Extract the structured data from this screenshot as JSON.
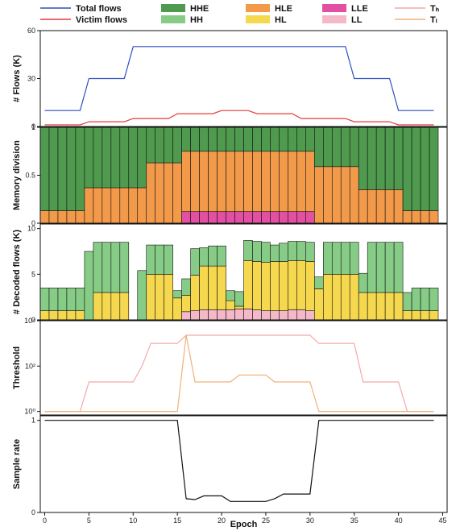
{
  "legend": [
    {
      "label": "Total flows",
      "kind": "line",
      "color": "#2f4fbf"
    },
    {
      "label": "Victim flows",
      "kind": "line",
      "color": "#e83a3a"
    },
    {
      "label": "HHE",
      "kind": "box",
      "color": "#4f9a4f"
    },
    {
      "label": "HH",
      "kind": "box",
      "color": "#86cc86"
    },
    {
      "label": "HLE",
      "kind": "box",
      "color": "#f39a4a"
    },
    {
      "label": "HL",
      "kind": "box",
      "color": "#f6d84e"
    },
    {
      "label": "LLE",
      "kind": "box",
      "color": "#e34fa2"
    },
    {
      "label": "LL",
      "kind": "box",
      "color": "#f5b8c9"
    },
    {
      "label": "Tₕ",
      "kind": "line",
      "color": "#f4a9a9"
    },
    {
      "label": "Tₗ",
      "kind": "line",
      "color": "#f0b27a"
    }
  ],
  "xlabel": "Epoch",
  "chart_data": [
    {
      "type": "line",
      "ylabel": "# Flows (K)",
      "ylim": [
        0,
        60
      ],
      "yticks": [
        "0",
        "30",
        "60"
      ],
      "x": [
        0,
        1,
        2,
        3,
        4,
        5,
        6,
        7,
        8,
        9,
        10,
        11,
        12,
        13,
        14,
        15,
        16,
        17,
        18,
        19,
        20,
        21,
        22,
        23,
        24,
        25,
        26,
        27,
        28,
        29,
        30,
        31,
        32,
        33,
        34,
        35,
        36,
        37,
        38,
        39,
        40,
        41,
        42,
        43,
        44
      ],
      "series": [
        {
          "name": "Total flows",
          "color": "#2f4fbf",
          "values": [
            10,
            10,
            10,
            10,
            10,
            30,
            30,
            30,
            30,
            30,
            50,
            50,
            50,
            50,
            50,
            50,
            50,
            50,
            50,
            50,
            50,
            50,
            50,
            50,
            50,
            50,
            50,
            50,
            50,
            50,
            50,
            50,
            50,
            50,
            50,
            30,
            30,
            30,
            30,
            30,
            10,
            10,
            10,
            10,
            10
          ]
        },
        {
          "name": "Victim flows",
          "color": "#e83a3a",
          "values": [
            1,
            1,
            1,
            1,
            1,
            3,
            3,
            3,
            3,
            3,
            5,
            5,
            5,
            5,
            5,
            8,
            8,
            8,
            8,
            8,
            10,
            10,
            10,
            10,
            8,
            8,
            8,
            8,
            8,
            5,
            5,
            5,
            5,
            5,
            5,
            3,
            3,
            3,
            3,
            3,
            1,
            1,
            1,
            1,
            1
          ]
        }
      ]
    },
    {
      "type": "bar",
      "stacked": true,
      "ylabel": "Memory division",
      "ylim": [
        0,
        1
      ],
      "yticks": [
        "0",
        "0.5",
        "1"
      ],
      "segments": [
        "LLE",
        "HLE",
        "HHE"
      ],
      "values": {
        "LLE": [
          0,
          0,
          0,
          0,
          0,
          0,
          0,
          0,
          0,
          0,
          0,
          0,
          0,
          0,
          0,
          0,
          0.12,
          0.12,
          0.12,
          0.12,
          0.12,
          0.12,
          0.12,
          0.12,
          0.12,
          0.12,
          0.12,
          0.12,
          0.12,
          0.12,
          0.12,
          0,
          0,
          0,
          0,
          0,
          0,
          0,
          0,
          0,
          0,
          0,
          0,
          0,
          0
        ],
        "HLE": [
          0.13,
          0.13,
          0.13,
          0.13,
          0.13,
          0.37,
          0.37,
          0.37,
          0.37,
          0.37,
          0.37,
          0.37,
          0.63,
          0.63,
          0.63,
          0.63,
          0.63,
          0.63,
          0.63,
          0.63,
          0.63,
          0.63,
          0.63,
          0.63,
          0.63,
          0.63,
          0.63,
          0.63,
          0.63,
          0.63,
          0.63,
          0.59,
          0.59,
          0.59,
          0.59,
          0.59,
          0.35,
          0.35,
          0.35,
          0.35,
          0.35,
          0.13,
          0.13,
          0.13,
          0.13
        ],
        "HHE": [
          0.87,
          0.87,
          0.87,
          0.87,
          0.87,
          0.63,
          0.63,
          0.63,
          0.63,
          0.63,
          0.63,
          0.63,
          0.37,
          0.37,
          0.37,
          0.37,
          0.25,
          0.25,
          0.25,
          0.25,
          0.25,
          0.25,
          0.25,
          0.25,
          0.25,
          0.25,
          0.25,
          0.25,
          0.25,
          0.25,
          0.25,
          0.41,
          0.41,
          0.41,
          0.41,
          0.41,
          0.65,
          0.65,
          0.65,
          0.65,
          0.65,
          0.87,
          0.87,
          0.87,
          0.87
        ]
      }
    },
    {
      "type": "bar",
      "stacked": true,
      "ylabel": "# Decoded flows (K)",
      "ylim": [
        0,
        10.5
      ],
      "yticks": [
        "0",
        "5",
        "10"
      ],
      "segments": [
        "LL",
        "HL",
        "HH"
      ],
      "values": {
        "LL": [
          0,
          0,
          0,
          0,
          0,
          0,
          0,
          0,
          0,
          0,
          0,
          0,
          0,
          0,
          0,
          0,
          0.9,
          1.0,
          1.1,
          1.1,
          1.1,
          1.1,
          1.2,
          1.2,
          1.1,
          1.0,
          1.0,
          1.0,
          1.1,
          1.1,
          1.0,
          0,
          0,
          0,
          0,
          0,
          0,
          0,
          0,
          0,
          0,
          0,
          0,
          0,
          0
        ],
        "HL": [
          1.0,
          1.0,
          1.0,
          1.0,
          1.0,
          0,
          3.0,
          3.0,
          3.0,
          3.0,
          0,
          0,
          5.0,
          5.0,
          5.0,
          2.4,
          1.8,
          3.9,
          4.8,
          4.8,
          4.8,
          1.0,
          0.3,
          5.3,
          5.3,
          5.3,
          5.4,
          5.4,
          5.4,
          5.4,
          5.4,
          3.4,
          5.0,
          5.0,
          5.0,
          5.0,
          3.0,
          3.0,
          3.0,
          3.0,
          3.0,
          1.0,
          1.0,
          1.0,
          1.0
        ],
        "HH": [
          2.5,
          2.5,
          2.5,
          2.5,
          2.5,
          7.5,
          5.5,
          5.5,
          5.5,
          5.5,
          0,
          5.4,
          3.2,
          3.2,
          3.2,
          0.8,
          1.8,
          2.9,
          2.0,
          2.2,
          2.2,
          1.1,
          1.6,
          2.2,
          2.2,
          2.2,
          1.8,
          2.0,
          2.1,
          2.1,
          2.1,
          1.3,
          3.5,
          3.5,
          3.5,
          3.5,
          2.1,
          5.5,
          5.5,
          5.5,
          5.5,
          2.0,
          2.5,
          2.5,
          2.5
        ]
      }
    },
    {
      "type": "line",
      "ylabel": "Threshold",
      "yscale": "log",
      "ylim": [
        0.7,
        10000
      ],
      "yticks": [
        "10⁰",
        "10²",
        "10⁴"
      ],
      "series": [
        {
          "name": "Tₕ",
          "color": "#f4a9a9",
          "values": [
            1,
            1,
            1,
            1,
            1,
            20,
            20,
            20,
            20,
            20,
            20,
            100,
            1000,
            1000,
            1000,
            1000,
            2300,
            2300,
            2300,
            2300,
            2300,
            2300,
            2300,
            2300,
            2300,
            2300,
            2300,
            2300,
            2300,
            2300,
            2300,
            1000,
            1000,
            1000,
            1000,
            1000,
            20,
            20,
            20,
            20,
            20,
            1,
            1,
            1,
            1
          ]
        },
        {
          "name": "Tₗ",
          "color": "#f0b27a",
          "values": [
            1,
            1,
            1,
            1,
            1,
            1,
            1,
            1,
            1,
            1,
            1,
            1,
            1,
            1,
            1,
            1,
            2300,
            20,
            20,
            20,
            20,
            20,
            40,
            40,
            40,
            40,
            20,
            20,
            20,
            20,
            20,
            1,
            1,
            1,
            1,
            1,
            1,
            1,
            1,
            1,
            1,
            1,
            1,
            1,
            1
          ]
        }
      ]
    },
    {
      "type": "line",
      "ylabel": "Sample rate",
      "ylim": [
        0,
        1.05
      ],
      "yticks": [
        "0",
        "1"
      ],
      "xticks": [
        "0",
        "5",
        "10",
        "15",
        "20",
        "25",
        "30",
        "35",
        "40",
        "45"
      ],
      "series": [
        {
          "name": "Sample rate",
          "color": "#111111",
          "values": [
            1,
            1,
            1,
            1,
            1,
            1,
            1,
            1,
            1,
            1,
            1,
            1,
            1,
            1,
            1,
            1,
            0.15,
            0.14,
            0.18,
            0.18,
            0.18,
            0.12,
            0.12,
            0.12,
            0.12,
            0.12,
            0.15,
            0.2,
            0.2,
            0.2,
            0.2,
            1,
            1,
            1,
            1,
            1,
            1,
            1,
            1,
            1,
            1,
            1,
            1,
            1,
            1
          ]
        }
      ]
    }
  ]
}
